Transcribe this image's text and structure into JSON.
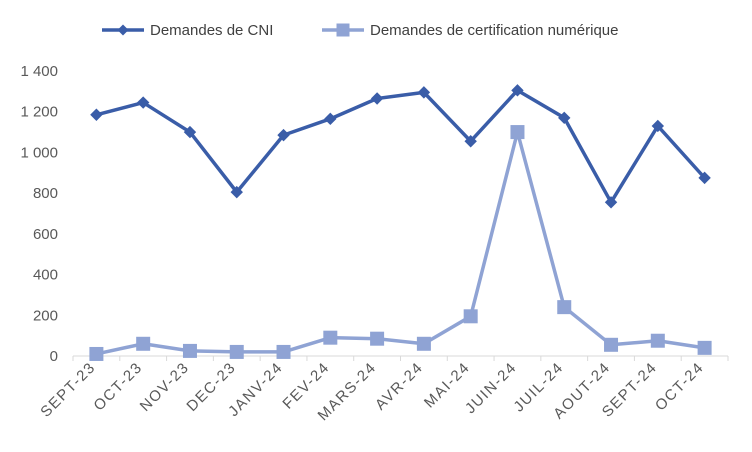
{
  "chart_data": {
    "type": "line",
    "categories": [
      "SEPT-23",
      "OCT-23",
      "NOV-23",
      "DEC-23",
      "JANV-24",
      "FEV-24",
      "MARS-24",
      "AVR-24",
      "MAI-24",
      "JUIN-24",
      "JUIL-24",
      "AOUT-24",
      "SEPT-24",
      "OCT-24"
    ],
    "series": [
      {
        "name": "Demandes de CNI",
        "color": "#3A5DA8",
        "marker": "diamond",
        "values": [
          1185,
          1245,
          1100,
          805,
          1085,
          1165,
          1265,
          1295,
          1055,
          1305,
          1170,
          755,
          1130,
          875
        ]
      },
      {
        "name": "Demandes de certification numérique",
        "color": "#8FA3D4",
        "marker": "square",
        "values": [
          10,
          60,
          25,
          20,
          20,
          90,
          85,
          60,
          195,
          1100,
          240,
          55,
          75,
          40
        ]
      }
    ],
    "title": "",
    "xlabel": "",
    "ylabel": "",
    "ylim": [
      0,
      1400
    ],
    "yticks": [
      0,
      200,
      400,
      600,
      800,
      1000,
      1200,
      1400
    ],
    "ytick_labels": [
      "0",
      "200",
      "400",
      "600",
      "800",
      "1 000",
      "1 200",
      "1 400"
    ],
    "grid": false,
    "legend_position": "top"
  }
}
